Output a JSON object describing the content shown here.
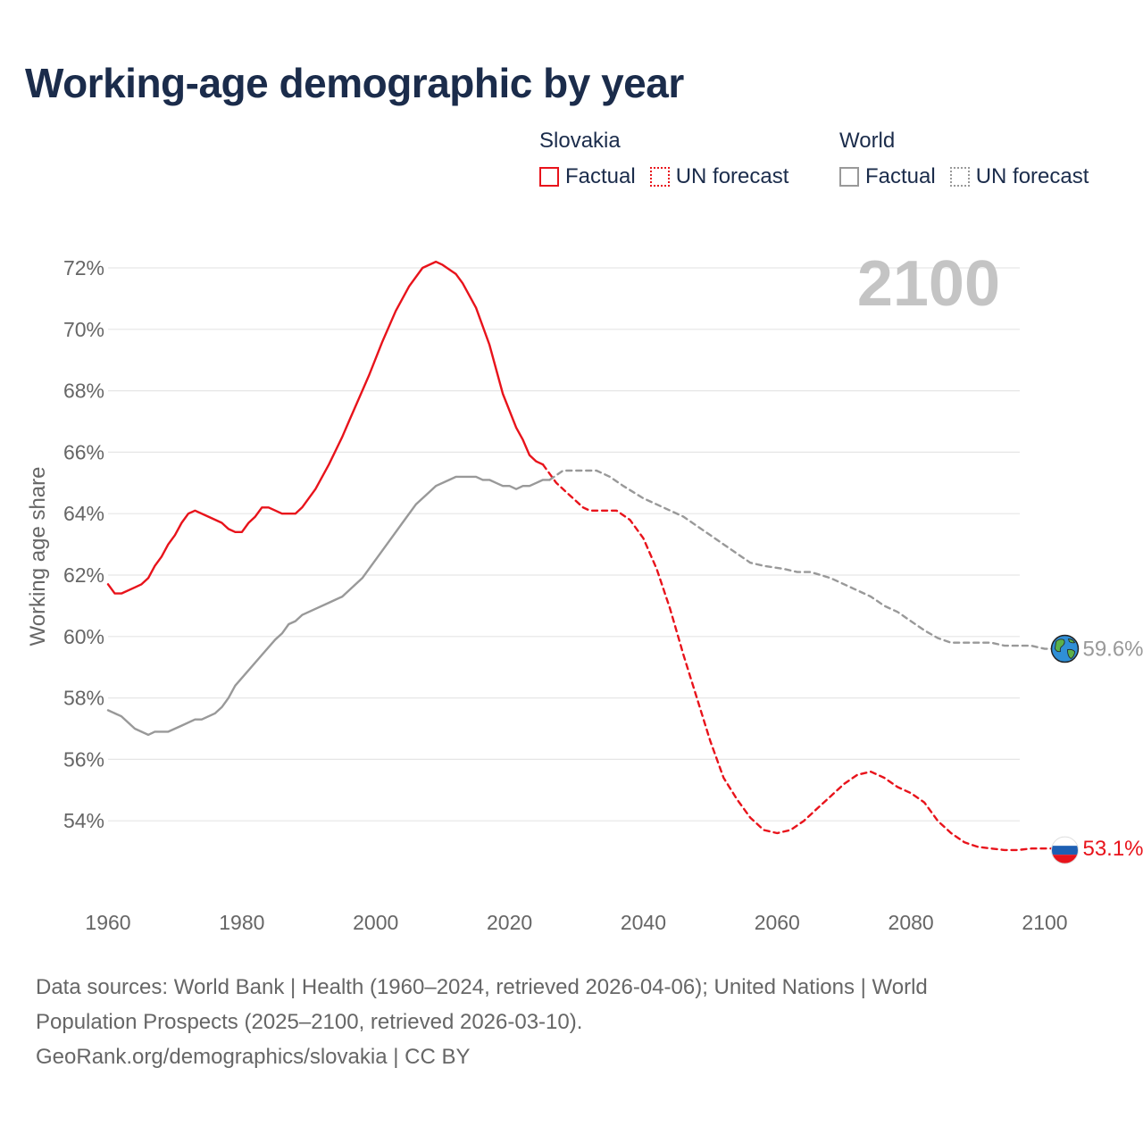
{
  "title": "Working-age demographic by year",
  "legend": {
    "groups": [
      {
        "name": "Slovakia",
        "color": "#e8131b",
        "factual_label": "Factual",
        "forecast_label": "UN forecast"
      },
      {
        "name": "World",
        "color": "#999999",
        "factual_label": "Factual",
        "forecast_label": "UN forecast"
      }
    ]
  },
  "footer": {
    "line1": "Data sources: World Bank | Health (1960–2024, retrieved 2026-04-06); United Nations | World",
    "line2": "Population Prospects (2025–2100, retrieved 2026-03-10).",
    "line3": "GeoRank.org/demographics/slovakia | CC BY"
  },
  "chart_data": {
    "type": "line",
    "title": "Working-age demographic by year",
    "ylabel": "Working age share",
    "xlabel": "",
    "year_label": "2100",
    "xlim": [
      1960,
      2103
    ],
    "ylim": [
      52,
      73
    ],
    "x_ticks": [
      1960,
      1980,
      2000,
      2020,
      2040,
      2060,
      2080,
      2100
    ],
    "y_ticks": [
      54,
      56,
      58,
      60,
      62,
      64,
      66,
      68,
      70,
      72
    ],
    "y_tick_labels": [
      "54%",
      "56%",
      "58%",
      "60%",
      "62%",
      "64%",
      "66%",
      "68%",
      "70%",
      "72%"
    ],
    "grid": true,
    "end_labels": {
      "slovakia": "53.1%",
      "world": "59.6%"
    },
    "series": [
      {
        "name": "Slovakia",
        "segment": "Factual",
        "color": "#e8131b",
        "dashed": false,
        "points": [
          [
            1960,
            61.7
          ],
          [
            1961,
            61.4
          ],
          [
            1962,
            61.4
          ],
          [
            1964,
            61.6
          ],
          [
            1965,
            61.7
          ],
          [
            1966,
            61.9
          ],
          [
            1967,
            62.3
          ],
          [
            1968,
            62.6
          ],
          [
            1969,
            63.0
          ],
          [
            1970,
            63.3
          ],
          [
            1971,
            63.7
          ],
          [
            1972,
            64.0
          ],
          [
            1973,
            64.1
          ],
          [
            1975,
            63.9
          ],
          [
            1977,
            63.7
          ],
          [
            1978,
            63.5
          ],
          [
            1979,
            63.4
          ],
          [
            1980,
            63.4
          ],
          [
            1981,
            63.7
          ],
          [
            1982,
            63.9
          ],
          [
            1983,
            64.2
          ],
          [
            1984,
            64.2
          ],
          [
            1986,
            64.0
          ],
          [
            1988,
            64.0
          ],
          [
            1989,
            64.2
          ],
          [
            1991,
            64.8
          ],
          [
            1993,
            65.6
          ],
          [
            1995,
            66.5
          ],
          [
            1996,
            67.0
          ],
          [
            1998,
            68.0
          ],
          [
            1999,
            68.5
          ],
          [
            2001,
            69.6
          ],
          [
            2003,
            70.6
          ],
          [
            2005,
            71.4
          ],
          [
            2007,
            72.0
          ],
          [
            2009,
            72.2
          ],
          [
            2010,
            72.1
          ],
          [
            2012,
            71.8
          ],
          [
            2013,
            71.5
          ],
          [
            2015,
            70.7
          ],
          [
            2017,
            69.5
          ],
          [
            2019,
            67.9
          ],
          [
            2021,
            66.8
          ],
          [
            2022,
            66.4
          ],
          [
            2023,
            65.9
          ],
          [
            2024,
            65.7
          ],
          [
            2025,
            65.6
          ]
        ]
      },
      {
        "name": "Slovakia",
        "segment": "UN forecast",
        "color": "#e8131b",
        "dashed": true,
        "points": [
          [
            2025,
            65.6
          ],
          [
            2027,
            65.0
          ],
          [
            2029,
            64.6
          ],
          [
            2031,
            64.2
          ],
          [
            2032,
            64.1
          ],
          [
            2036,
            64.1
          ],
          [
            2038,
            63.8
          ],
          [
            2040,
            63.2
          ],
          [
            2042,
            62.2
          ],
          [
            2044,
            60.9
          ],
          [
            2046,
            59.4
          ],
          [
            2048,
            58.0
          ],
          [
            2050,
            56.6
          ],
          [
            2052,
            55.4
          ],
          [
            2054,
            54.7
          ],
          [
            2056,
            54.1
          ],
          [
            2058,
            53.7
          ],
          [
            2060,
            53.6
          ],
          [
            2062,
            53.7
          ],
          [
            2064,
            54.0
          ],
          [
            2066,
            54.4
          ],
          [
            2068,
            54.8
          ],
          [
            2070,
            55.2
          ],
          [
            2072,
            55.5
          ],
          [
            2074,
            55.6
          ],
          [
            2076,
            55.4
          ],
          [
            2078,
            55.1
          ],
          [
            2080,
            54.9
          ],
          [
            2082,
            54.6
          ],
          [
            2084,
            54.0
          ],
          [
            2086,
            53.6
          ],
          [
            2088,
            53.3
          ],
          [
            2090,
            53.15
          ],
          [
            2092,
            53.1
          ],
          [
            2094,
            53.05
          ],
          [
            2096,
            53.05
          ],
          [
            2098,
            53.1
          ],
          [
            2100,
            53.1
          ],
          [
            2103,
            53.1
          ]
        ]
      },
      {
        "name": "World",
        "segment": "Factual",
        "color": "#999999",
        "dashed": false,
        "points": [
          [
            1960,
            57.6
          ],
          [
            1962,
            57.4
          ],
          [
            1964,
            57.0
          ],
          [
            1966,
            56.8
          ],
          [
            1967,
            56.9
          ],
          [
            1969,
            56.9
          ],
          [
            1971,
            57.1
          ],
          [
            1973,
            57.3
          ],
          [
            1974,
            57.3
          ],
          [
            1976,
            57.5
          ],
          [
            1977,
            57.7
          ],
          [
            1978,
            58.0
          ],
          [
            1979,
            58.4
          ],
          [
            1981,
            58.9
          ],
          [
            1983,
            59.4
          ],
          [
            1985,
            59.9
          ],
          [
            1986,
            60.1
          ],
          [
            1987,
            60.4
          ],
          [
            1988,
            60.5
          ],
          [
            1989,
            60.7
          ],
          [
            1991,
            60.9
          ],
          [
            1993,
            61.1
          ],
          [
            1994,
            61.2
          ],
          [
            1995,
            61.3
          ],
          [
            1996,
            61.5
          ],
          [
            1998,
            61.9
          ],
          [
            2000,
            62.5
          ],
          [
            2002,
            63.1
          ],
          [
            2004,
            63.7
          ],
          [
            2006,
            64.3
          ],
          [
            2008,
            64.7
          ],
          [
            2009,
            64.9
          ],
          [
            2011,
            65.1
          ],
          [
            2012,
            65.2
          ],
          [
            2015,
            65.2
          ],
          [
            2016,
            65.1
          ],
          [
            2017,
            65.1
          ],
          [
            2018,
            65.0
          ],
          [
            2019,
            64.9
          ],
          [
            2020,
            64.9
          ],
          [
            2021,
            64.8
          ],
          [
            2022,
            64.9
          ],
          [
            2023,
            64.9
          ],
          [
            2024,
            65.0
          ],
          [
            2025,
            65.1
          ],
          [
            2026,
            65.1
          ]
        ]
      },
      {
        "name": "World",
        "segment": "UN forecast",
        "color": "#999999",
        "dashed": true,
        "points": [
          [
            2026,
            65.1
          ],
          [
            2028,
            65.4
          ],
          [
            2033,
            65.4
          ],
          [
            2035,
            65.2
          ],
          [
            2037,
            64.9
          ],
          [
            2040,
            64.5
          ],
          [
            2043,
            64.2
          ],
          [
            2046,
            63.9
          ],
          [
            2048,
            63.6
          ],
          [
            2050,
            63.3
          ],
          [
            2052,
            63.0
          ],
          [
            2054,
            62.7
          ],
          [
            2056,
            62.4
          ],
          [
            2058,
            62.3
          ],
          [
            2061,
            62.2
          ],
          [
            2063,
            62.1
          ],
          [
            2065,
            62.1
          ],
          [
            2068,
            61.9
          ],
          [
            2070,
            61.7
          ],
          [
            2072,
            61.5
          ],
          [
            2074,
            61.3
          ],
          [
            2076,
            61.0
          ],
          [
            2078,
            60.8
          ],
          [
            2080,
            60.5
          ],
          [
            2082,
            60.2
          ],
          [
            2084,
            59.95
          ],
          [
            2086,
            59.8
          ],
          [
            2090,
            59.8
          ],
          [
            2092,
            59.8
          ],
          [
            2094,
            59.7
          ],
          [
            2098,
            59.7
          ],
          [
            2100,
            59.6
          ],
          [
            2103,
            59.6
          ]
        ]
      }
    ]
  }
}
